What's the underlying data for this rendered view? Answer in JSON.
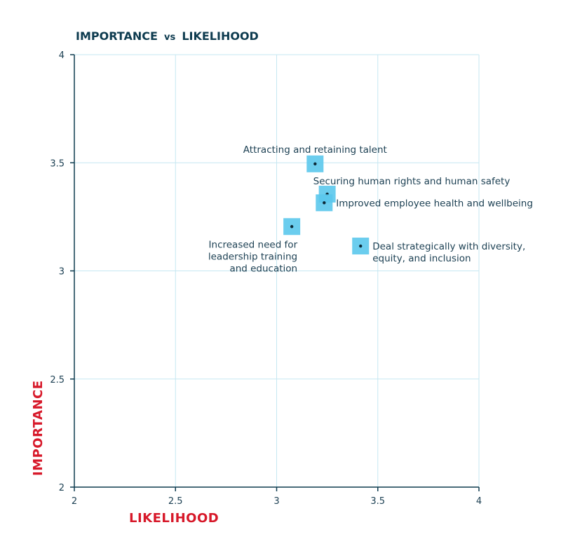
{
  "chart_data": {
    "type": "scatter",
    "title_parts": [
      "IMPORTANCE",
      "vs",
      "LIKELIHOOD"
    ],
    "xlabel": "LIKELIHOOD",
    "ylabel": "IMPORTANCE",
    "xlim": [
      2,
      4
    ],
    "ylim": [
      2,
      4
    ],
    "xticks": [
      {
        "value": 2,
        "label": "2"
      },
      {
        "value": 2.5,
        "label": "2.5"
      },
      {
        "value": 3,
        "label": "3"
      },
      {
        "value": 3.5,
        "label": "3.5"
      },
      {
        "value": 4,
        "label": "4"
      }
    ],
    "yticks": [
      {
        "value": 2,
        "label": "2"
      },
      {
        "value": 2.5,
        "label": "2.5"
      },
      {
        "value": 3,
        "label": "3"
      },
      {
        "value": 3.5,
        "label": "3.5"
      },
      {
        "value": 4,
        "label": "4"
      }
    ],
    "grid": true,
    "colors": {
      "title": "#0d3b4f",
      "axis_title": "#d7192a",
      "axis": "#0d3b4f",
      "grid": "#c6e7f2",
      "marker": "#5bc8ec",
      "dot": "#0d2a38",
      "text": "#1b3f52"
    },
    "points": [
      {
        "x": 3.19,
        "y": 3.495,
        "label_lines": [
          "Attracting and retaining talent"
        ],
        "label_pos": "above"
      },
      {
        "x": 3.25,
        "y": 3.355,
        "label_lines": [
          "Securing human rights and human safety"
        ],
        "label_pos": "above-right"
      },
      {
        "x": 3.235,
        "y": 3.315,
        "label_lines": [
          "Improved employee health and wellbeing"
        ],
        "label_pos": "right"
      },
      {
        "x": 3.075,
        "y": 3.205,
        "label_lines": [
          "Increased need for",
          "leadership training",
          "and education"
        ],
        "label_pos": "below-left"
      },
      {
        "x": 3.415,
        "y": 3.115,
        "label_lines": [
          "Deal strategically with diversity,",
          "equity, and inclusion"
        ],
        "label_pos": "right"
      }
    ]
  }
}
